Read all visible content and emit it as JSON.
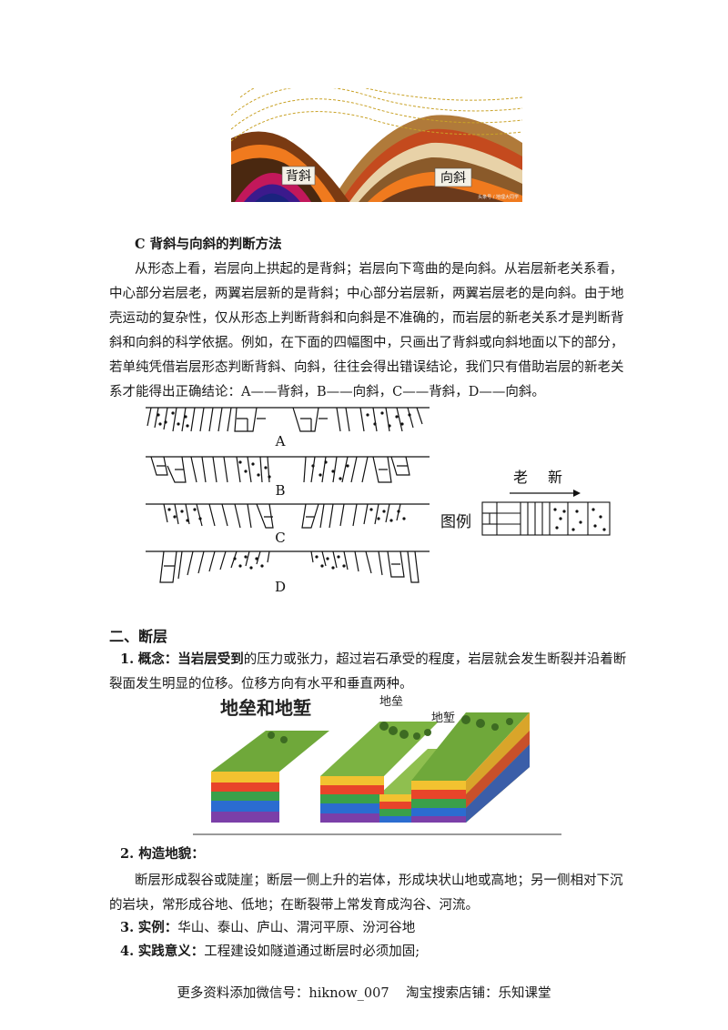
{
  "fold_figure": {
    "label_anticline": "背斜",
    "label_syncline": "向斜",
    "watermark": "头条号 / 地理大同学"
  },
  "section_c": {
    "heading": "C 背斜与向斜的判断方法",
    "lines": [
      "从形态上看，岩层向上拱起的是背斜；岩层向下弯曲的是向斜。从岩层新老关系看，",
      "中心部分岩层老，两翼岩层新的是背斜；中心部分岩层新，两翼岩层老的是向斜。由于地",
      "壳运动的复杂性，仅从形态上判断背斜和向斜是不准确的，而岩层的新老关系才是判断背",
      "斜和向斜的科学依据。例如，在下面的四幅图中，只画出了背斜或向斜地面以下的部分，",
      "若单纯凭借岩层形态判断背斜、向斜，往往会得出错误结论，我们只有借助岩层的新老关",
      "系才能得出正确结论：A——背斜，B——向斜，C——背斜，D——向斜。"
    ]
  },
  "abcd_figure": {
    "labels": [
      "A",
      "B",
      "C",
      "D"
    ],
    "legend_label": "图例",
    "legend_old": "老",
    "legend_new": "新"
  },
  "section_fault": {
    "heading": "二、断层",
    "item1_num": "1.",
    "item1_bold": "概念：当岩层受到",
    "item1_rest": "的压力或张力，超过岩石承受的程度，岩层就会发生断裂并沿着断",
    "item1_line2": "裂面发生明显的位移。位移方向有水平和垂直两种。",
    "fault_title": "地垒和地堑",
    "horst_label": "地垒",
    "graben_label": "地堑",
    "item2_num": "2.",
    "item2_label": "构造地貌：",
    "item2_line1": "断层形成裂谷或陡崖；断层一侧上升的岩体，形成块状山地或高地；另一侧相对下沉",
    "item2_line2": "的岩块，常形成谷地、低地；在断裂带上常发育成沟谷、河流。",
    "item3_num": "3.",
    "item3_label": "实例：",
    "item3_text": "华山、泰山、庐山、渭河平原、汾河谷地",
    "item4_num": "4.",
    "item4_label": "实践意义：",
    "item4_text": "工程建设如隧道通过断层时必须加固;"
  },
  "footer": {
    "text": "更多资料添加微信号：hiknow_007    淘宝搜索店铺：乐知课堂"
  }
}
